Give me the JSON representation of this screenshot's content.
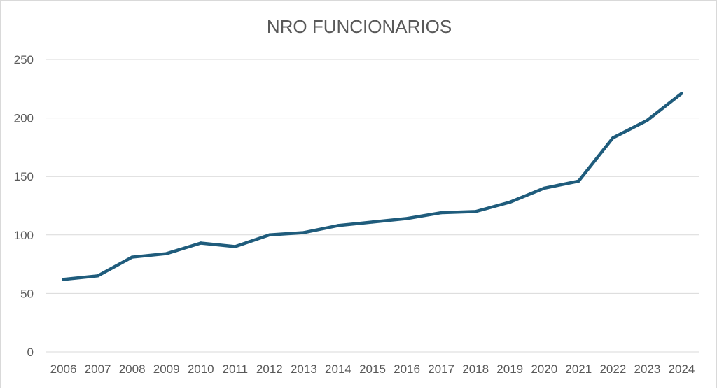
{
  "chart_data": {
    "type": "line",
    "title": "NRO FUNCIONARIOS",
    "xlabel": "",
    "ylabel": "",
    "categories": [
      "2006",
      "2007",
      "2008",
      "2009",
      "2010",
      "2011",
      "2012",
      "2013",
      "2014",
      "2015",
      "2016",
      "2017",
      "2018",
      "2019",
      "2020",
      "2021",
      "2022",
      "2023",
      "2024"
    ],
    "series": [
      {
        "values": [
          62,
          65,
          81,
          84,
          93,
          90,
          100,
          102,
          108,
          111,
          114,
          119,
          120,
          128,
          140,
          146,
          183,
          198,
          221
        ],
        "color": "#1f5c7c"
      }
    ],
    "ylim": [
      0,
      250
    ],
    "yticks": [
      0,
      50,
      100,
      150,
      200,
      250
    ],
    "grid": true,
    "legend": "none"
  }
}
